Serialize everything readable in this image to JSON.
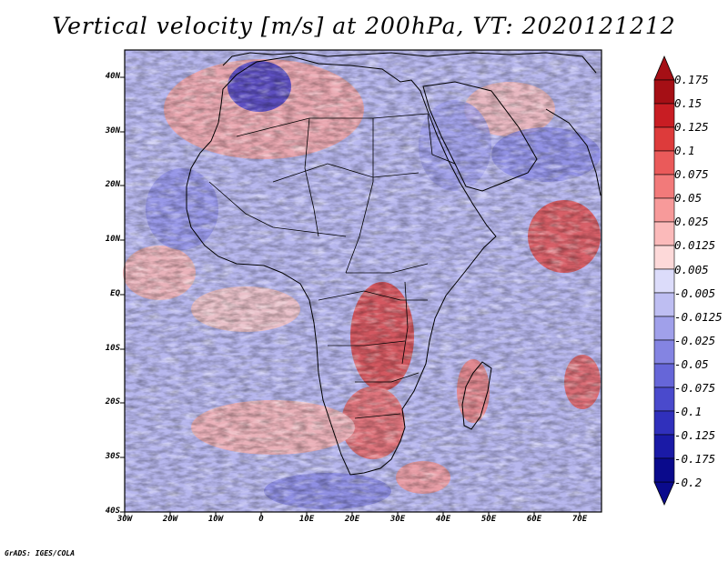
{
  "title": "Vertical velocity [m/s] at 200hPa, VT: 2020121212",
  "credit": "GrADS: IGES/COLA",
  "map": {
    "region": "Africa",
    "lat_labels": [
      "40N",
      "30N",
      "20N",
      "10N",
      "EQ",
      "10S",
      "20S",
      "30S",
      "40S"
    ],
    "lon_labels": [
      "30W",
      "20W",
      "10W",
      "0",
      "10E",
      "20E",
      "30E",
      "40E",
      "50E",
      "60E",
      "70E"
    ],
    "lon_range": [
      -30,
      75
    ],
    "lat_range": [
      -40,
      45
    ]
  },
  "colorbar": {
    "labels": [
      "0.175",
      "0.15",
      "0.125",
      "0.1",
      "0.075",
      "0.05",
      "0.025",
      "0.0125",
      "0.005",
      "-0.005",
      "-0.0125",
      "-0.025",
      "-0.05",
      "-0.075",
      "-0.1",
      "-0.125",
      "-0.175",
      "-0.2"
    ],
    "colors": [
      "#a50f15",
      "#c81d23",
      "#dd3b3b",
      "#ea5a5a",
      "#f27a7a",
      "#f79a9a",
      "#fbbaba",
      "#fdd9d9",
      "#ffffff",
      "#dcdcfa",
      "#bebef2",
      "#a0a0ea",
      "#8484e2",
      "#6666d8",
      "#4a4acc",
      "#3030bc",
      "#1a1aa6",
      "#0a0a8c"
    ]
  }
}
